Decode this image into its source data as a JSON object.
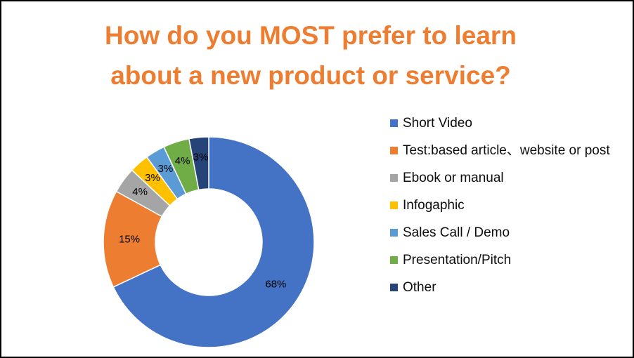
{
  "title": {
    "line1": "How do you MOST prefer to learn",
    "line2": "about a new product or service?",
    "color": "#ED7D31"
  },
  "chart_data": {
    "type": "pie",
    "subtype": "donut",
    "title": "How do you MOST prefer to learn about a new product or service?",
    "legend_position": "right",
    "label_color": "#000000",
    "slice_border_color": "#ffffff",
    "series": [
      {
        "name": "Short Video",
        "value": 68,
        "label": "68%",
        "color": "#4472C4"
      },
      {
        "name": "Test:based article、website or post",
        "value": 15,
        "label": "15%",
        "color": "#ED7D31"
      },
      {
        "name": "Ebook or manual",
        "value": 4,
        "label": "4%",
        "color": "#A5A5A5"
      },
      {
        "name": "Infogaphic",
        "value": 3,
        "label": "3%",
        "color": "#FFC000"
      },
      {
        "name": "Sales Call / Demo",
        "value": 3,
        "label": "3%",
        "color": "#5B9BD5"
      },
      {
        "name": "Presentation/Pitch",
        "value": 4,
        "label": "4%",
        "color": "#70AD47"
      },
      {
        "name": "Other",
        "value": 3,
        "label": "3%",
        "color": "#264478"
      }
    ]
  }
}
